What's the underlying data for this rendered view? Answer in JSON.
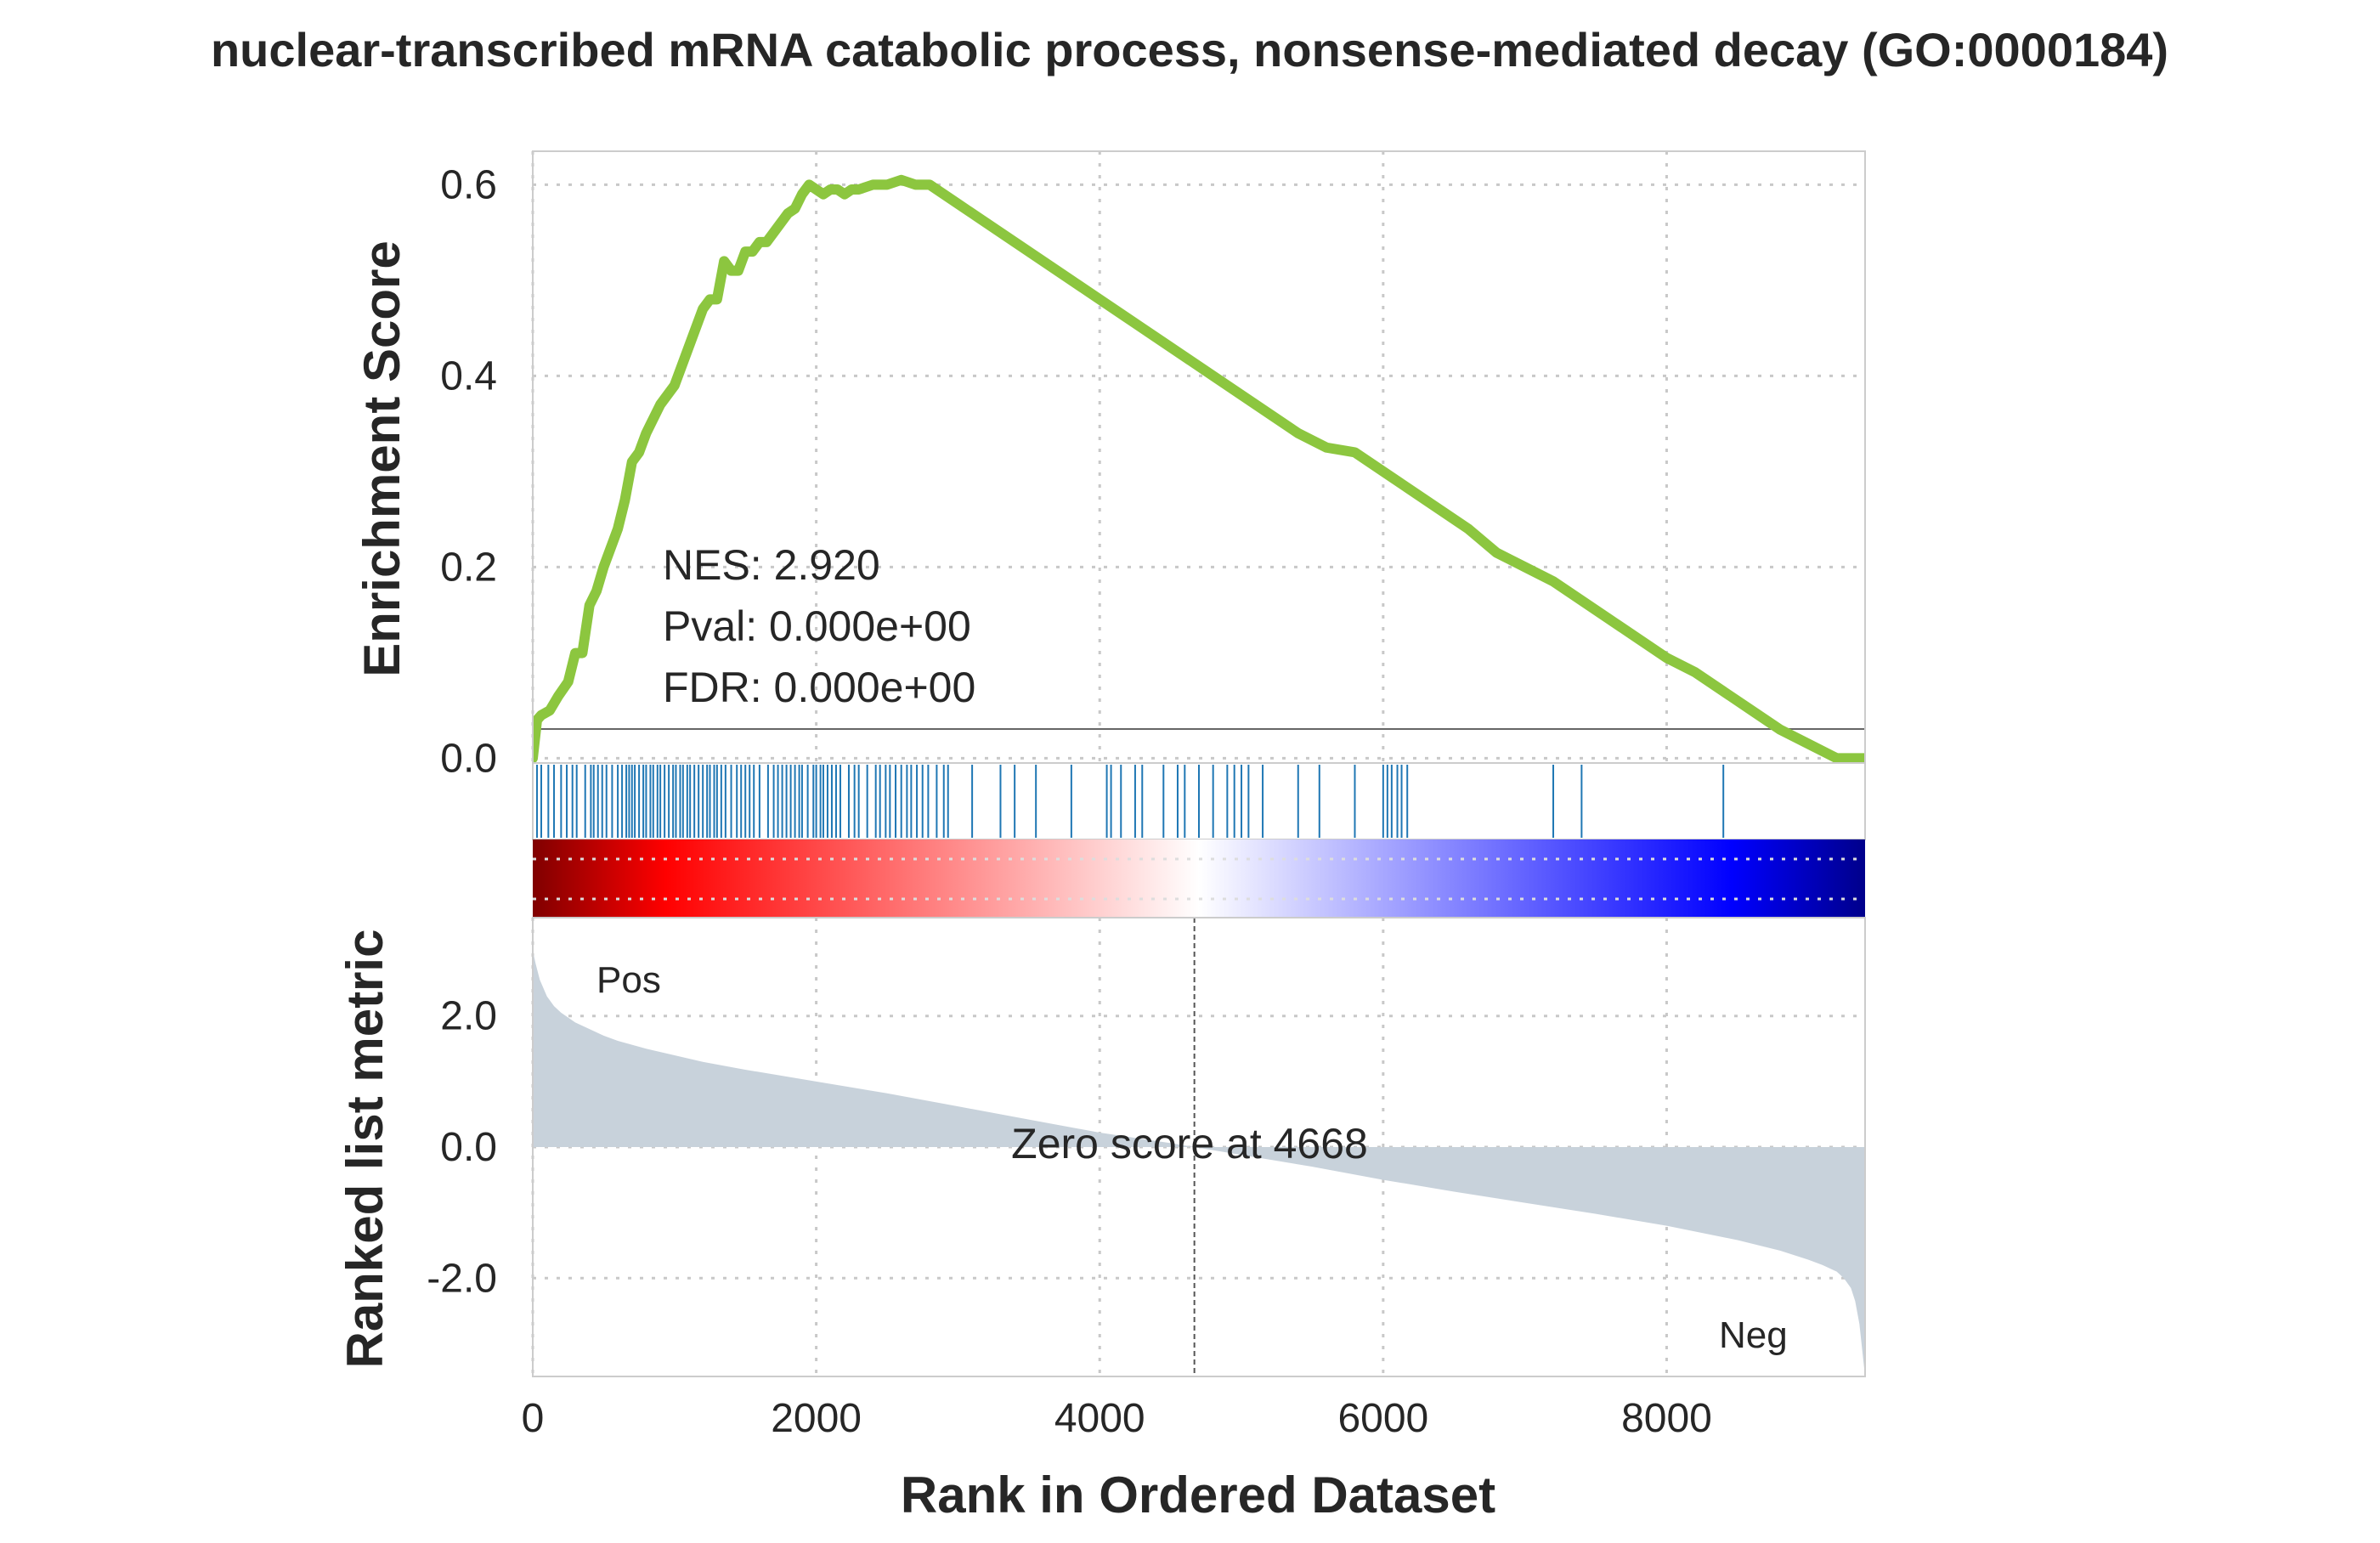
{
  "chart_data": {
    "type": "line",
    "title": "nuclear-transcribed mRNA catabolic process, nonsense-mediated decay (GO:0000184)",
    "xlabel": "Rank in Ordered Dataset",
    "x_ticks": [
      "0",
      "2000",
      "4000",
      "6000",
      "8000"
    ],
    "xlim": [
      0,
      9400
    ],
    "panels": {
      "enrichment": {
        "ylabel": "Enrichment Score",
        "y_ticks": [
          "0.0",
          "0.2",
          "0.4",
          "0.6"
        ],
        "ylim": [
          -0.005,
          0.635
        ],
        "line_color": "#8cc63f",
        "series": {
          "x": [
            0,
            30,
            60,
            120,
            180,
            250,
            300,
            350,
            400,
            450,
            500,
            550,
            600,
            650,
            700,
            750,
            800,
            850,
            900,
            950,
            1000,
            1050,
            1100,
            1150,
            1200,
            1250,
            1300,
            1350,
            1400,
            1450,
            1500,
            1550,
            1600,
            1650,
            1700,
            1750,
            1800,
            1850,
            1900,
            1950,
            2000,
            2050,
            2100,
            2150,
            2200,
            2250,
            2300,
            2400,
            2500,
            2600,
            2700,
            2800,
            2900,
            3000,
            3200,
            3400,
            3600,
            3800,
            4000,
            4200,
            4400,
            4600,
            4800,
            5000,
            5200,
            5400,
            5600,
            5800,
            6000,
            6200,
            6400,
            6600,
            6800,
            7000,
            7200,
            7400,
            7600,
            7800,
            8000,
            8200,
            8400,
            8600,
            8800,
            9000,
            9200,
            9400
          ],
          "y": [
            0.0,
            0.04,
            0.045,
            0.05,
            0.065,
            0.08,
            0.11,
            0.11,
            0.16,
            0.175,
            0.2,
            0.22,
            0.24,
            0.27,
            0.31,
            0.32,
            0.34,
            0.355,
            0.37,
            0.38,
            0.39,
            0.41,
            0.43,
            0.45,
            0.47,
            0.48,
            0.48,
            0.52,
            0.51,
            0.51,
            0.53,
            0.53,
            0.54,
            0.54,
            0.55,
            0.56,
            0.57,
            0.575,
            0.59,
            0.6,
            0.595,
            0.59,
            0.595,
            0.595,
            0.59,
            0.595,
            0.595,
            0.6,
            0.6,
            0.605,
            0.6,
            0.6,
            0.59,
            0.58,
            0.56,
            0.54,
            0.52,
            0.5,
            0.48,
            0.46,
            0.44,
            0.42,
            0.4,
            0.38,
            0.36,
            0.34,
            0.325,
            0.32,
            0.3,
            0.28,
            0.26,
            0.24,
            0.215,
            0.2,
            0.185,
            0.165,
            0.145,
            0.125,
            0.105,
            0.09,
            0.07,
            0.05,
            0.03,
            0.015,
            0.0,
            0.0
          ]
        },
        "stats": {
          "nes": "NES: 2.920",
          "pval": "Pval: 0.000e+00",
          "fdr": "FDR: 0.000e+00"
        }
      },
      "hits": {
        "line_color": "#1f77b4",
        "positions": [
          30,
          60,
          110,
          150,
          200,
          240,
          280,
          310,
          370,
          410,
          430,
          460,
          490,
          520,
          560,
          600,
          630,
          660,
          680,
          700,
          720,
          750,
          780,
          800,
          830,
          850,
          880,
          900,
          930,
          960,
          990,
          1010,
          1040,
          1060,
          1090,
          1110,
          1140,
          1170,
          1200,
          1230,
          1250,
          1280,
          1300,
          1330,
          1360,
          1400,
          1440,
          1470,
          1500,
          1530,
          1560,
          1600,
          1660,
          1700,
          1730,
          1760,
          1790,
          1820,
          1850,
          1880,
          1900,
          1940,
          1980,
          2000,
          2030,
          2050,
          2080,
          2110,
          2140,
          2170,
          2230,
          2270,
          2300,
          2360,
          2420,
          2450,
          2490,
          2520,
          2560,
          2600,
          2640,
          2670,
          2710,
          2750,
          2790,
          2850,
          2900,
          2930,
          3100,
          3300,
          3400,
          3550,
          3800,
          4050,
          4080,
          4150,
          4250,
          4300,
          4450,
          4550,
          4600,
          4700,
          4800,
          4900,
          4950,
          5000,
          5050,
          5150,
          5400,
          5550,
          5800,
          6000,
          6030,
          6060,
          6100,
          6130,
          6170,
          7200,
          7400,
          8400
        ]
      },
      "heatmap": {
        "colormap": [
          "#800000",
          "#ff0000",
          "#ffffff",
          "#0000ff",
          "#00008b"
        ]
      },
      "ranked": {
        "ylabel": "Ranked list metric",
        "y_ticks": [
          "-2.0",
          "0.0",
          "2.0"
        ],
        "ylim": [
          -3.5,
          3.5
        ],
        "fill_color": "#c8d2db",
        "series": {
          "x": [
            0,
            20,
            50,
            100,
            150,
            200,
            300,
            400,
            500,
            600,
            800,
            1000,
            1200,
            1500,
            2000,
            2500,
            3000,
            3500,
            4000,
            4500,
            4668,
            5000,
            5500,
            6000,
            6500,
            7000,
            7500,
            8000,
            8500,
            8800,
            9000,
            9100,
            9200,
            9250,
            9300,
            9330,
            9360,
            9380,
            9400
          ],
          "y": [
            3.0,
            2.8,
            2.55,
            2.3,
            2.15,
            2.05,
            1.9,
            1.8,
            1.7,
            1.62,
            1.5,
            1.4,
            1.3,
            1.18,
            1.0,
            0.82,
            0.62,
            0.42,
            0.22,
            0.06,
            0.0,
            -0.12,
            -0.3,
            -0.5,
            -0.68,
            -0.85,
            -1.02,
            -1.2,
            -1.42,
            -1.58,
            -1.72,
            -1.8,
            -1.9,
            -2.0,
            -2.15,
            -2.35,
            -2.7,
            -3.1,
            -3.5
          ]
        },
        "zero_score_label": "Zero score at 4668",
        "zero_score_rank": 4668,
        "pos_label": "Pos",
        "neg_label": "Neg",
        "pos_color": "#ff0000",
        "neg_color": "#0000cc"
      }
    }
  }
}
